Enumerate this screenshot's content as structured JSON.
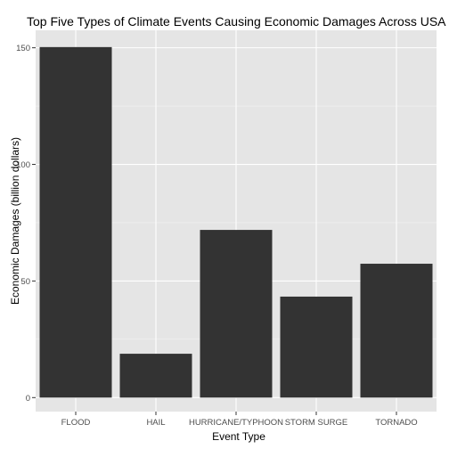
{
  "colors": {
    "panel_background": "#e5e5e5",
    "grid_major": "#ffffff",
    "grid_minor": "#f2f2f2",
    "bar_fill": "#333333",
    "tick_text": "#4d4d4d"
  },
  "chart_data": {
    "type": "bar",
    "title": "Top Five Types of Climate Events Causing Economic Damages Across USA",
    "xlabel": "Event Type",
    "ylabel": "Economic Damages (billion dollars)",
    "categories": [
      "FLOOD",
      "HAIL",
      "HURRICANE/TYPHOON",
      "STORM SURGE",
      "TORNADO"
    ],
    "values": [
      150.3,
      18.8,
      71.9,
      43.3,
      57.4
    ],
    "ylim": [
      -6,
      157.5
    ],
    "yticks": [
      0,
      50,
      100,
      150
    ],
    "grid": true,
    "legend": "none"
  }
}
